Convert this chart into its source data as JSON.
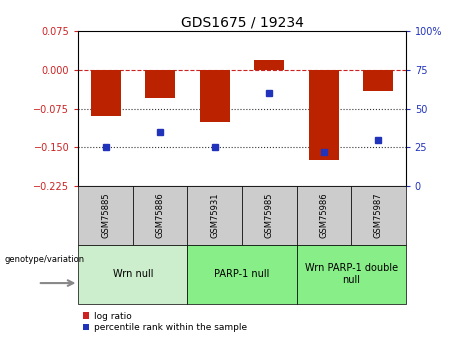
{
  "title": "GDS1675 / 19234",
  "samples": [
    "GSM75885",
    "GSM75886",
    "GSM75931",
    "GSM75985",
    "GSM75986",
    "GSM75987"
  ],
  "log_ratio": [
    -0.09,
    -0.055,
    -0.1,
    0.02,
    -0.175,
    -0.04
  ],
  "percentile_rank": [
    25,
    35,
    25,
    60,
    22,
    30
  ],
  "left_yticks": [
    0.075,
    0,
    -0.075,
    -0.15,
    -0.225
  ],
  "right_yticks": [
    100,
    75,
    50,
    25,
    0
  ],
  "bar_color": "#bb2200",
  "dot_color": "#2233bb",
  "zero_line_color": "#cc2222",
  "dotted_line_color": "#333333",
  "background_color": "#ffffff",
  "legend_log_ratio_color": "#cc2222",
  "legend_percentile_color": "#2233bb",
  "group_ranges": [
    [
      0,
      1,
      "Wrn null",
      "#cceecc"
    ],
    [
      2,
      3,
      "PARP-1 null",
      "#88ee88"
    ],
    [
      4,
      5,
      "Wrn PARP-1 double\nnull",
      "#88ee88"
    ]
  ],
  "sample_box_color": "#cccccc",
  "title_fontsize": 10,
  "tick_fontsize": 7,
  "sample_fontsize": 6,
  "group_fontsize": 7
}
